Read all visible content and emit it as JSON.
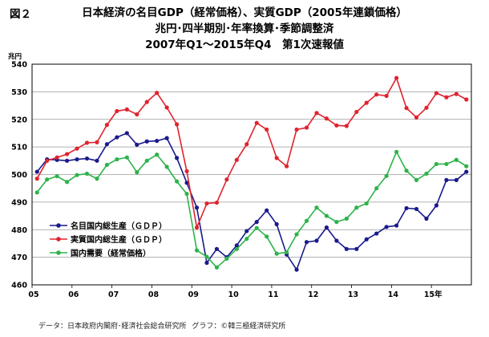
{
  "figure_label": "図２",
  "title_line1": "日本経済の名目GDP（経常価格）、実質GDP（2005年連鎖価格）",
  "title_line2": "兆円･四半期別･年率換算･季節調整済",
  "title_line3": "2007年Q1～2015年Q4　第1次速報値",
  "unit": "兆円",
  "footer": {
    "source": "データ：日本政府内閣府･経済社会総合研究所",
    "graph": "グラフ：©韓三極経済研究所"
  },
  "colors": {
    "nominal": "#1a1a8c",
    "real": "#e0232e",
    "domestic": "#2db34a"
  },
  "chart_data": {
    "type": "line",
    "title": "日本経済の名目GDP（経常価格）、実質GDP（2005年連鎖価格）",
    "ylim": [
      460,
      540
    ],
    "yticks": [
      460,
      470,
      480,
      490,
      500,
      510,
      520,
      530,
      540
    ],
    "grid": true,
    "legend_position": "lower-left",
    "x_tick_labels": [
      "05",
      "06",
      "07",
      "08",
      "09",
      "10",
      "11",
      "12",
      "13",
      "14",
      "15年"
    ],
    "x_quarter_count": 44,
    "series": [
      {
        "name": "名目国内総生産（ＧＤＰ）",
        "color": "#1a1a8c",
        "values": [
          501,
          505.5,
          505.3,
          505,
          505.5,
          505.8,
          505,
          511,
          513.5,
          515,
          510.8,
          512,
          512.2,
          513.2,
          506,
          497,
          488,
          468,
          473,
          470,
          474.3,
          479.5,
          482.8,
          487,
          482,
          471,
          465.5,
          475.5,
          476,
          480.8,
          476,
          473,
          473,
          476.5,
          478.6,
          481,
          481.5,
          487.8,
          487.5,
          484,
          488.8,
          498,
          498,
          501
        ]
      },
      {
        "name": "実質国内総生産（ＧＤＰ）",
        "color": "#e0232e",
        "values": [
          498.5,
          505,
          506.2,
          507.4,
          509.4,
          511.5,
          511.7,
          518,
          523,
          523.6,
          521.8,
          526.3,
          529.6,
          524.3,
          518.2,
          501.2,
          480.8,
          489.5,
          489.8,
          498.2,
          505.3,
          511,
          518.7,
          516.3,
          506,
          503,
          516.3,
          517,
          522.3,
          520.3,
          517.8,
          517.6,
          522.7,
          526,
          529,
          528.5,
          535,
          524.1,
          520.7,
          524.2,
          529.5,
          528,
          529.2,
          527.2
        ]
      },
      {
        "name": "国内需要（経常価格）",
        "color": "#2db34a",
        "values": [
          493.5,
          498.2,
          499.4,
          497.3,
          499.8,
          500.3,
          498.5,
          503.5,
          505.5,
          506.2,
          500.8,
          505,
          507.2,
          502.8,
          497.5,
          493,
          472.5,
          470.2,
          466.3,
          469.5,
          473,
          476.7,
          480.6,
          477.5,
          471.3,
          471.8,
          478.3,
          483.2,
          488,
          485,
          482.8,
          484,
          488,
          489.5,
          495,
          499.5,
          508.2,
          501.4,
          498,
          500.3,
          503.8,
          503.8,
          505.3,
          503
        ]
      }
    ]
  }
}
